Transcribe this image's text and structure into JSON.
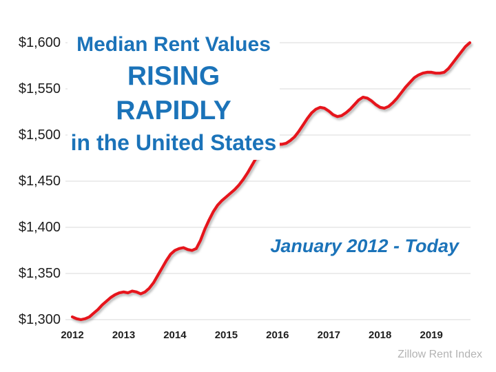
{
  "title": {
    "line1": "Median Rent Values",
    "line2": "RISING RAPIDLY",
    "line3": "in the United States"
  },
  "subtitle": "January 2012 - Today",
  "source": "Zillow Rent Index",
  "colors": {
    "title_blue": "#1b73b9",
    "line_red": "#e6151c",
    "grid_gray": "#d9d9d9",
    "axis_text": "#1d1d1d",
    "source_gray": "#b3b3b3"
  },
  "chart_data": {
    "type": "line",
    "title": "Median Rent Values RISING RAPIDLY in the United States",
    "subtitle": "January 2012 - Today",
    "source": "Zillow Rent Index",
    "legend": "none",
    "grid": "horizontal",
    "x_axis": {
      "tick_labels": [
        "2012",
        "2013",
        "2014",
        "2015",
        "2016",
        "2017",
        "2018",
        "2019"
      ],
      "start": "2012-01",
      "end": "2019-10",
      "interval": "monthly"
    },
    "y_axis": {
      "min": 1300,
      "max": 1600,
      "step": 50,
      "ticks": [
        1300,
        1350,
        1400,
        1450,
        1500,
        1550,
        1600
      ],
      "tick_labels": [
        "$1,300",
        "$1,350",
        "$1,400",
        "$1,450",
        "$1,500",
        "$1,550",
        "$1,600"
      ],
      "unit": "USD per month"
    },
    "series": [
      {
        "name": "US Median Rent (Zillow Rent Index)",
        "color": "#e6151c",
        "values": [
          1303,
          1301,
          1300,
          1301,
          1303,
          1307,
          1311,
          1316,
          1320,
          1324,
          1327,
          1329,
          1330,
          1329,
          1331,
          1330,
          1328,
          1330,
          1334,
          1340,
          1348,
          1356,
          1364,
          1371,
          1375,
          1377,
          1378,
          1376,
          1375,
          1377,
          1386,
          1398,
          1408,
          1417,
          1424,
          1429,
          1433,
          1437,
          1441,
          1446,
          1452,
          1459,
          1467,
          1475,
          1482,
          1487,
          1489,
          1490,
          1490,
          1490,
          1491,
          1494,
          1498,
          1504,
          1511,
          1518,
          1524,
          1528,
          1530,
          1529,
          1526,
          1522,
          1520,
          1521,
          1524,
          1528,
          1533,
          1538,
          1541,
          1540,
          1537,
          1533,
          1530,
          1529,
          1531,
          1535,
          1540,
          1546,
          1552,
          1557,
          1562,
          1565,
          1567,
          1568,
          1568,
          1567,
          1567,
          1568,
          1572,
          1578,
          1584,
          1590,
          1596,
          1600
        ]
      }
    ]
  }
}
